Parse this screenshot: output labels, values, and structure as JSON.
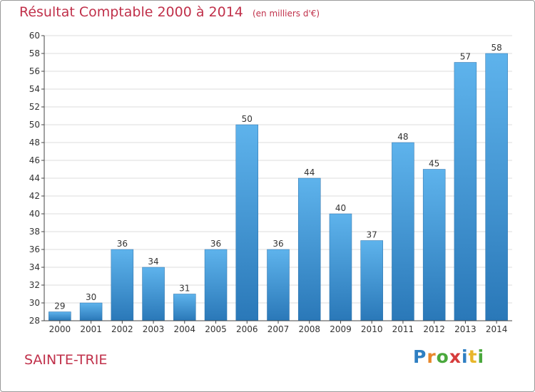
{
  "page": {
    "title": "Résultat Comptable 2000 à 2014",
    "subtitle": "(en milliers d'€)",
    "commune": "SAINTE-TRIE",
    "logo_text": "Proxiti",
    "logo_letters": [
      "P",
      "r",
      "o",
      "x",
      "i",
      "t",
      "i"
    ],
    "logo_colors": [
      "#2e7fc2",
      "#e8872b",
      "#4aa83c",
      "#d63c3c",
      "#2e7fc2",
      "#e8b62b",
      "#4aa83c"
    ]
  },
  "colors": {
    "title": "#c0304a",
    "bar_top": "#5eb3ec",
    "bar_bottom": "#2a78b8",
    "grid": "#dedede",
    "axis": "#444444"
  },
  "chart_data": {
    "type": "bar",
    "title": "Résultat Comptable 2000 à 2014",
    "subtitle": "(en milliers d'€)",
    "xlabel": "",
    "ylabel": "",
    "categories": [
      "2000",
      "2001",
      "2002",
      "2003",
      "2004",
      "2005",
      "2006",
      "2007",
      "2008",
      "2009",
      "2010",
      "2011",
      "2012",
      "2013",
      "2014"
    ],
    "values": [
      29,
      30,
      36,
      34,
      31,
      36,
      50,
      36,
      44,
      40,
      37,
      48,
      45,
      57,
      58
    ],
    "ylim": [
      28,
      60
    ],
    "yticks": [
      28,
      30,
      32,
      34,
      36,
      38,
      40,
      42,
      44,
      46,
      48,
      50,
      52,
      54,
      56,
      58,
      60
    ],
    "grid": true,
    "data_labels": true
  }
}
